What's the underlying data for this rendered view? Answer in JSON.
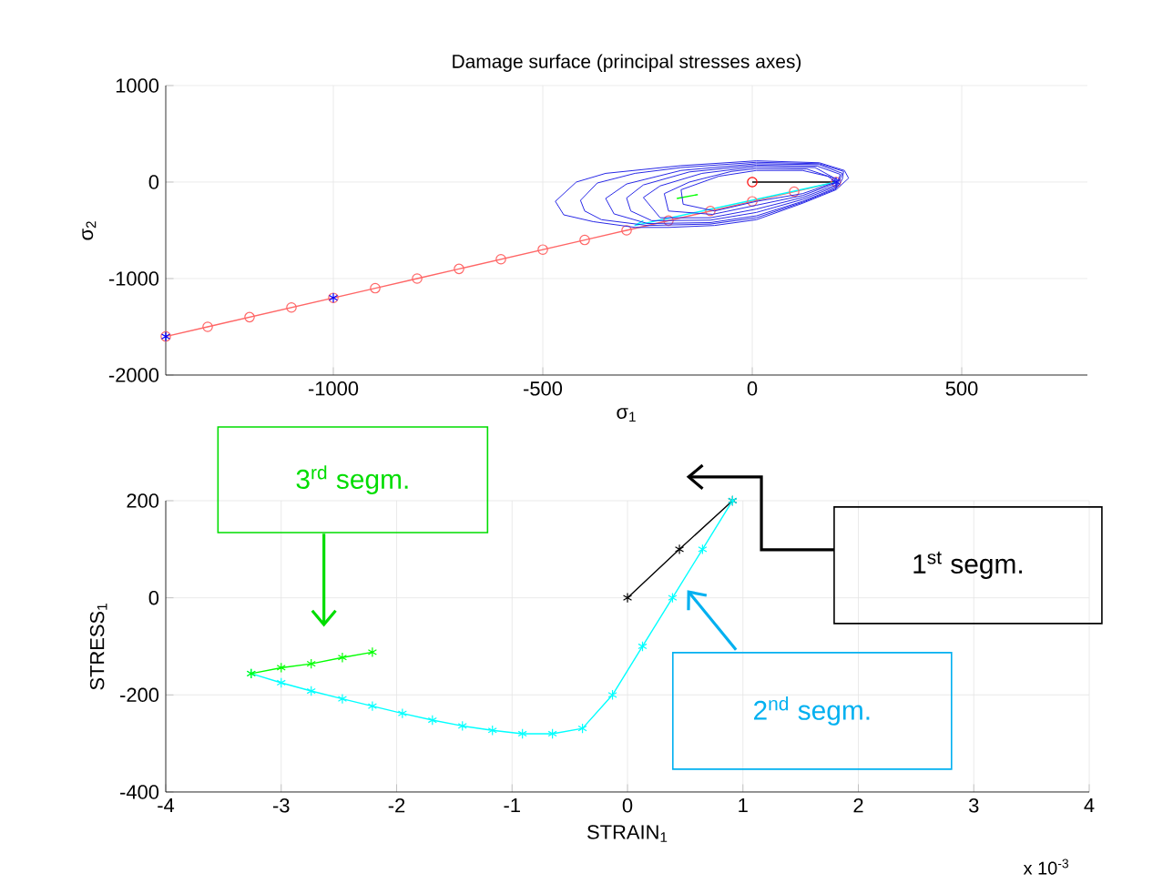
{
  "chart_data": [
    {
      "type": "line",
      "title": "Damage surface (principal stresses axes)",
      "xlabel": "σ$_{1}$",
      "ylabel": "σ$_{2}$",
      "xlim": [
        -1400,
        800
      ],
      "ylim": [
        -2000,
        1000
      ],
      "xticks": [
        -1000,
        -500,
        0,
        500
      ],
      "yticks": [
        -2000,
        -1000,
        0,
        1000
      ],
      "grid": true,
      "series": [
        {
          "color": "#ff6666",
          "marker": "circle",
          "x": [
            -1400,
            -1300,
            -1200,
            -1100,
            -1000,
            -900,
            -800,
            -700,
            -600,
            -500,
            -400,
            -300,
            -200,
            -100,
            0,
            100,
            200
          ],
          "values": [
            -1600,
            -1500,
            -1400,
            -1300,
            -1200,
            -1100,
            -1000,
            -900,
            -800,
            -700,
            -600,
            -500,
            -400,
            -300,
            -200,
            -100,
            0
          ]
        },
        {
          "type": "scatter",
          "color": "#0000ff",
          "marker": "cross",
          "x": [
            -1400,
            -1000,
            200
          ],
          "values": [
            -1600,
            -1200,
            0
          ]
        },
        {
          "color": "#000000",
          "marker": "none",
          "x": [
            0,
            200
          ],
          "values": [
            0,
            0
          ]
        },
        {
          "type": "scatter",
          "color": "#ff0000",
          "marker": "circle",
          "x": [
            0
          ],
          "values": [
            0
          ]
        },
        {
          "color": "#00ffff",
          "marker": "none",
          "x": [
            200,
            -280,
            -260
          ],
          "values": [
            0,
            -450,
            -400
          ]
        },
        {
          "color": "#00ff00",
          "marker": "none",
          "x": [
            -180,
            -130
          ],
          "values": [
            -170,
            -130
          ]
        }
      ]
    },
    {
      "type": "line",
      "xlabel": "STRAIN$_{1}$",
      "ylabel": "STRESS$_{1}$",
      "xlim": [
        -4,
        4
      ],
      "ylim": [
        -400,
        200
      ],
      "xticks": [
        -4,
        -3,
        -2,
        -1,
        0,
        1,
        2,
        3,
        4
      ],
      "yticks": [
        -400,
        -200,
        0,
        200
      ],
      "grid": true,
      "annotations": [
        "3$^{rd}$ segm.",
        "1$^{st}$ segm.",
        "2$^{nd}$ segm.",
        "x 10$^{-3}$"
      ],
      "series": [
        {
          "color": "#000000",
          "marker": "cross",
          "x": [
            0,
            0.45,
            0.91
          ],
          "values": [
            0,
            100,
            200
          ]
        },
        {
          "color": "#00ffff",
          "marker": "cross",
          "x": [
            0.91,
            0.65,
            0.39,
            0.13,
            -0.13,
            -0.39,
            -0.65,
            -0.91,
            -1.17,
            -1.43,
            -1.69,
            -1.95,
            -2.21,
            -2.47,
            -2.74,
            -3.0,
            -3.26
          ],
          "values": [
            200,
            100,
            0,
            -100,
            -200,
            -269,
            -280,
            -280,
            -273,
            -264,
            -252,
            -238,
            -223,
            -208,
            -192,
            -175,
            -156
          ]
        },
        {
          "color": "#00ff00",
          "marker": "cross",
          "x": [
            -3.26,
            -3.0,
            -2.74,
            -2.47,
            -2.21
          ],
          "values": [
            -156,
            -144,
            -136,
            -123,
            -112
          ]
        }
      ]
    }
  ]
}
